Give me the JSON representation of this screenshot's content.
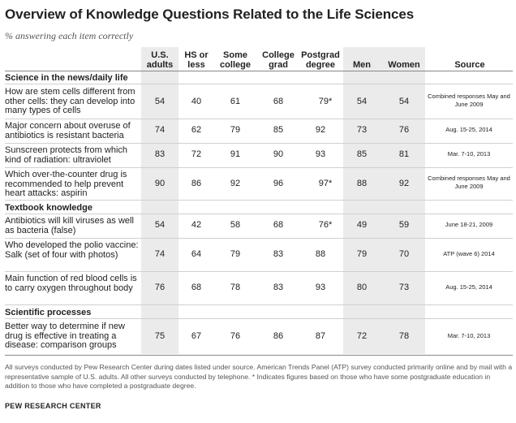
{
  "title": "Overview of Knowledge Questions Related to the Life Sciences",
  "subtitle": "% answering each item correctly",
  "columns": {
    "us_adults": "U.S. adults",
    "hs_or_less": "HS or less",
    "some_college": "Some college",
    "college_grad": "College grad",
    "postgrad": "Postgrad degree",
    "men": "Men",
    "women": "Women",
    "source": "Source"
  },
  "sections": [
    {
      "label": "Science in the news/daily life",
      "rows": [
        {
          "item": "How are stem cells different from other cells: they can develop into many types of cells",
          "values": [
            "54",
            "40",
            "61",
            "68",
            "79*",
            "54",
            "54"
          ],
          "source": "Combined responses May and June 2009"
        },
        {
          "item": "Major concern about overuse of antibiotics is resistant bacteria",
          "values": [
            "74",
            "62",
            "79",
            "85",
            "92",
            "73",
            "76"
          ],
          "source": "Aug. 15-25, 2014"
        },
        {
          "item": "Sunscreen protects from which kind of radiation: ultraviolet",
          "values": [
            "83",
            "72",
            "91",
            "90",
            "93",
            "85",
            "81"
          ],
          "source": "Mar. 7-10, 2013"
        },
        {
          "item": "Which over-the-counter drug is recommended to help prevent heart attacks: aspirin",
          "values": [
            "90",
            "86",
            "92",
            "96",
            "97*",
            "88",
            "92"
          ],
          "source": "Combined responses May and June 2009"
        }
      ]
    },
    {
      "label": "Textbook knowledge",
      "rows": [
        {
          "item": "Antibiotics will kill viruses as well as bacteria (false)",
          "values": [
            "54",
            "42",
            "58",
            "68",
            "76*",
            "49",
            "59"
          ],
          "source": "June 18-21, 2009"
        },
        {
          "item": "Who developed the polio vaccine: Salk (set of four with photos)",
          "values": [
            "74",
            "64",
            "79",
            "83",
            "88",
            "79",
            "70"
          ],
          "source": "ATP (wave 6) 2014"
        },
        {
          "item": "Main function of red blood cells is to carry oxygen throughout body",
          "values": [
            "76",
            "68",
            "78",
            "83",
            "93",
            "80",
            "73"
          ],
          "source": "Aug. 15-25, 2014"
        }
      ]
    },
    {
      "label": "Scientific processes",
      "rows": [
        {
          "item": "Better way to determine if new drug is effective in treating a disease: comparison groups",
          "values": [
            "75",
            "67",
            "76",
            "86",
            "87",
            "72",
            "78"
          ],
          "source": "Mar. 7-10, 2013"
        }
      ]
    }
  ],
  "note": "All surveys conducted by Pew Research Center during dates listed under source. American Trends Panel (ATP) survey conducted primarily online and by mail with a representative sample of U.S. adults. All other surveys conducted by telephone. * Indicates figures based on those who have some postgraduate education in addition to those who have completed a postgraduate degree.",
  "footer": "PEW RESEARCH CENTER",
  "colors": {
    "shade": "#ebebeb",
    "text": "#222222",
    "note": "#555555"
  }
}
